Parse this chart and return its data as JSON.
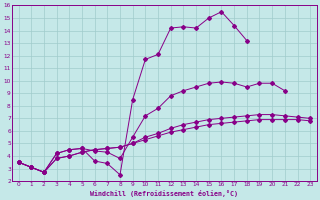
{
  "xlabel": "Windchill (Refroidissement éolien,°C)",
  "xlim": [
    -0.5,
    23.5
  ],
  "ylim": [
    2,
    16
  ],
  "xticks": [
    0,
    1,
    2,
    3,
    4,
    5,
    6,
    7,
    8,
    9,
    10,
    11,
    12,
    13,
    14,
    15,
    16,
    17,
    18,
    19,
    20,
    21,
    22,
    23
  ],
  "yticks": [
    2,
    3,
    4,
    5,
    6,
    7,
    8,
    9,
    10,
    11,
    12,
    13,
    14,
    15,
    16
  ],
  "background_color": "#c5e8e8",
  "grid_color": "#a0cccc",
  "line_color": "#880088",
  "line1_x": [
    0,
    1,
    2,
    3,
    4,
    5,
    6,
    7,
    8,
    9,
    10,
    11,
    12,
    13,
    14,
    15,
    16,
    17,
    18,
    19,
    20,
    21,
    22,
    23
  ],
  "line1_y": [
    3.5,
    3.1,
    2.7,
    4.2,
    4.5,
    4.6,
    3.6,
    3.4,
    2.5,
    8.5,
    11.7,
    12.1,
    14.2,
    14.3,
    14.2,
    15.0,
    15.5,
    14.4,
    13.2,
    null,
    null,
    null,
    null,
    null
  ],
  "line2_x": [
    0,
    1,
    2,
    3,
    4,
    5,
    6,
    7,
    8,
    9,
    10,
    11,
    12,
    13,
    14,
    15,
    16,
    17,
    18,
    19,
    20,
    21,
    22,
    23
  ],
  "line2_y": [
    3.5,
    3.1,
    2.7,
    4.2,
    4.5,
    4.6,
    4.4,
    4.3,
    3.8,
    5.5,
    7.2,
    7.8,
    8.8,
    9.2,
    9.5,
    9.8,
    9.9,
    9.8,
    9.5,
    9.8,
    9.8,
    9.2,
    null,
    null
  ],
  "line3_x": [
    0,
    1,
    2,
    3,
    4,
    5,
    6,
    7,
    8,
    9,
    10,
    11,
    12,
    13,
    14,
    15,
    16,
    17,
    18,
    19,
    20,
    21,
    22,
    23
  ],
  "line3_y": [
    3.5,
    3.1,
    2.7,
    3.8,
    4.0,
    4.3,
    4.5,
    4.6,
    4.7,
    5.0,
    5.5,
    5.8,
    6.2,
    6.5,
    6.7,
    6.9,
    7.0,
    7.1,
    7.2,
    7.3,
    7.3,
    7.2,
    7.1,
    7.0
  ],
  "line4_x": [
    0,
    1,
    2,
    3,
    4,
    5,
    6,
    7,
    8,
    9,
    10,
    11,
    12,
    13,
    14,
    15,
    16,
    17,
    18,
    19,
    20,
    21,
    22,
    23
  ],
  "line4_y": [
    3.5,
    3.1,
    2.7,
    3.8,
    4.0,
    4.3,
    4.5,
    4.6,
    4.7,
    5.0,
    5.3,
    5.6,
    5.9,
    6.1,
    6.3,
    6.5,
    6.6,
    6.7,
    6.8,
    6.9,
    6.9,
    6.9,
    6.9,
    6.8
  ]
}
